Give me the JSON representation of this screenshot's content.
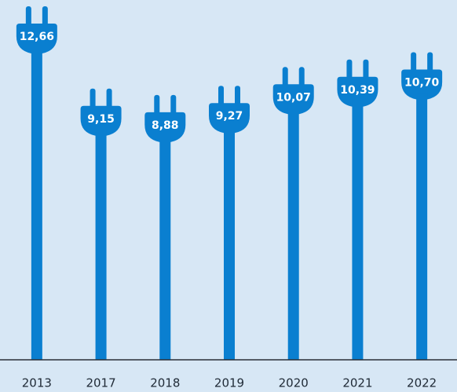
{
  "chart_data": {
    "type": "bar",
    "categories": [
      "2013",
      "2017",
      "2018",
      "2019",
      "2020",
      "2021",
      "2022"
    ],
    "values": [
      12.66,
      9.15,
      8.88,
      9.27,
      10.07,
      10.39,
      10.7
    ],
    "value_labels": [
      "12,66",
      "9,15",
      "8,88",
      "9,27",
      "10,07",
      "10,39",
      "10,70"
    ],
    "color": "#0a7fd0"
  }
}
